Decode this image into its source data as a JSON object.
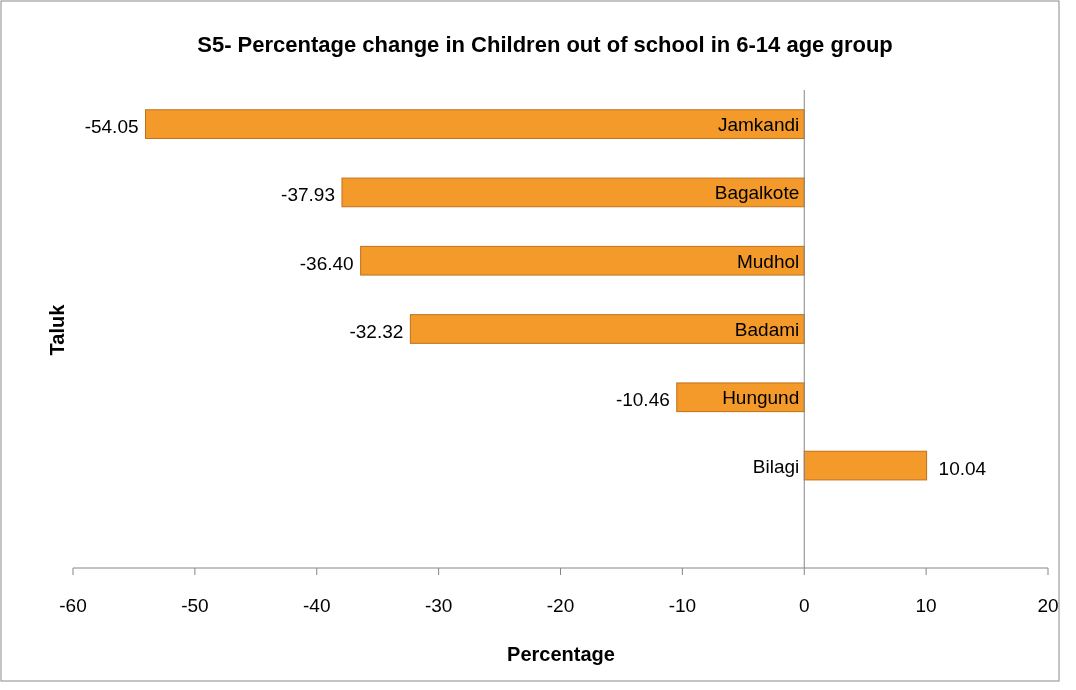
{
  "chart_data": {
    "type": "bar",
    "orientation": "horizontal",
    "title": "S5- Percentage change in Children out of school in 6-14 age group",
    "xlabel": "Percentage",
    "ylabel": "Taluk",
    "categories": [
      "Jamkandi",
      "Bagalkote",
      "Mudhol",
      "Badami",
      "Hungund",
      "Bilagi"
    ],
    "values": [
      -54.05,
      -37.93,
      -36.4,
      -32.32,
      -10.46,
      10.04
    ],
    "value_labels": [
      "-54.05",
      "-37.93",
      "-36.40",
      "-32.32",
      "-10.46",
      "10.04"
    ],
    "color": "#f39a2b",
    "xlim": [
      -60,
      20
    ],
    "xticks": [
      -60,
      -50,
      -40,
      -30,
      -20,
      -10,
      0,
      10,
      20
    ],
    "grid": false
  }
}
